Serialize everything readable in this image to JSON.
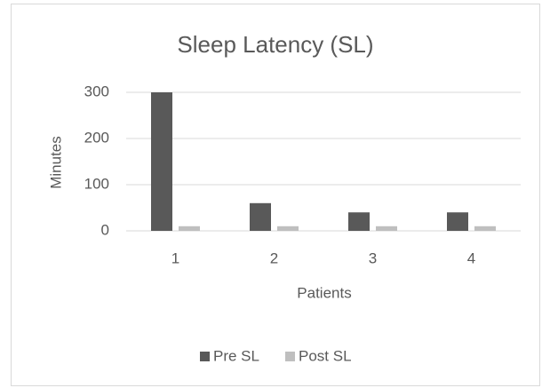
{
  "chart_data": {
    "type": "bar",
    "title": "Sleep Latency (SL)",
    "x_label": "Patients",
    "y_label": "Minutes",
    "categories": [
      "1",
      "2",
      "3",
      "4"
    ],
    "series": [
      {
        "name": "Pre SL",
        "color": "#595959",
        "values": [
          300,
          60,
          40,
          40
        ]
      },
      {
        "name": "Post SL",
        "color": "#bfbfbf",
        "values": [
          10,
          10,
          10,
          10
        ]
      }
    ],
    "ylim": [
      0,
      300
    ],
    "yticks": [
      0,
      100,
      200,
      300
    ],
    "grid": true,
    "legend": "bottom"
  }
}
